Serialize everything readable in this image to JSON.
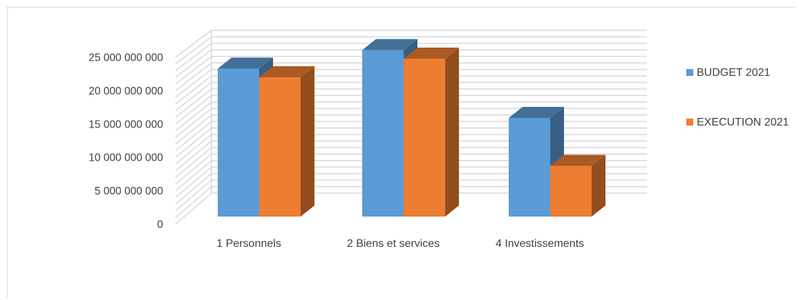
{
  "chart_data": {
    "type": "bar",
    "style": "3d-clustered-column",
    "categories": [
      "1 Personnels",
      "2 Biens et services",
      "4 Investissements"
    ],
    "series": [
      {
        "name": "BUDGET 2021",
        "values": [
          20700000000,
          23300000000,
          13800000000
        ],
        "color": "#5b9bd5"
      },
      {
        "name": "EXECUTION 2021",
        "values": [
          19500000000,
          22100000000,
          7100000000
        ],
        "color": "#ed7d31"
      }
    ],
    "yticks": [
      "0",
      "5 000 000 000",
      "10 000 000 000",
      "15 000 000 000",
      "20 000 000 000",
      "25 000 000 000"
    ],
    "ylim": [
      0,
      25000000000
    ],
    "grid": true,
    "legend_position": "right"
  }
}
